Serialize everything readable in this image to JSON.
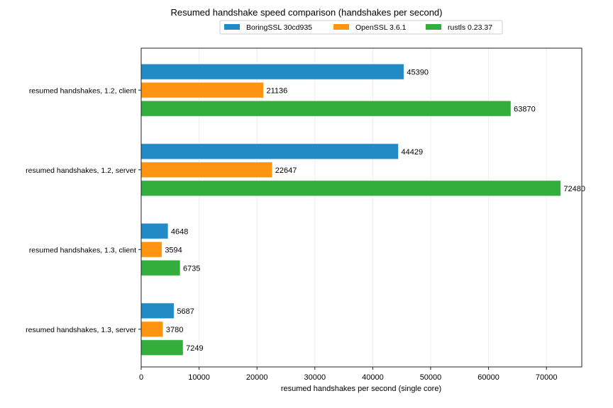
{
  "chart_data": {
    "type": "bar",
    "orientation": "horizontal",
    "title": "Resumed handshake speed comparison (handshakes per second)",
    "xlabel": "resumed handshakes per second (single core)",
    "ylabel": "",
    "xlim": [
      0,
      76104
    ],
    "xticks": [
      "0",
      "10000",
      "20000",
      "30000",
      "40000",
      "50000",
      "60000",
      "70000"
    ],
    "grid": "vertical, light",
    "legend_position": "top-center",
    "categories": [
      "resumed handshakes, 1.2, client",
      "resumed handshakes, 1.2, server",
      "resumed handshakes, 1.3, client",
      "resumed handshakes, 1.3, server"
    ],
    "series": [
      {
        "name": "BoringSSL 30cd935",
        "color": "#228bc6",
        "values": [
          45390,
          44429,
          4648,
          5687
        ]
      },
      {
        "name": "OpenSSL 3.6.1",
        "color": "#ff9412",
        "values": [
          21136,
          22647,
          3594,
          3780
        ]
      },
      {
        "name": "rustls 0.23.37",
        "color": "#33ad3b",
        "values": [
          63870,
          72480,
          6735,
          7249
        ]
      }
    ]
  }
}
